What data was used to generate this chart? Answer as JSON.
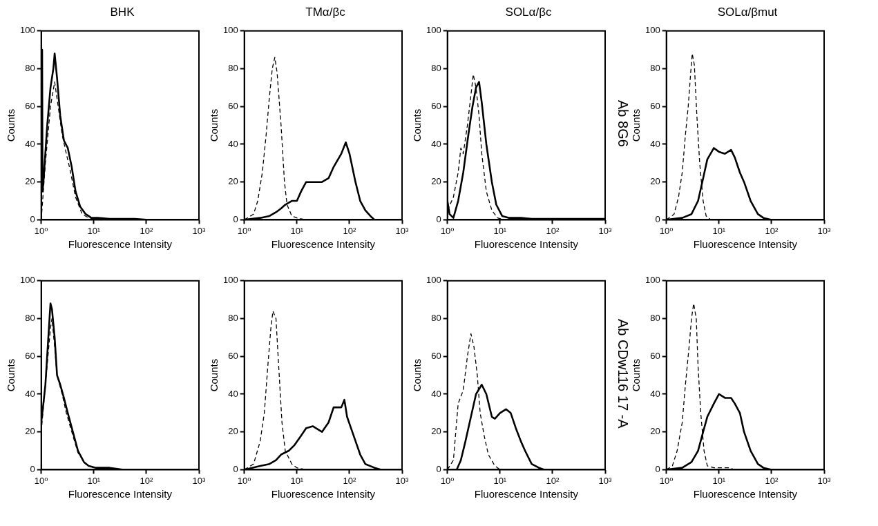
{
  "chart_data": [
    {
      "type": "line",
      "title": "BHK",
      "xlabel": "Fluorescence Intensity",
      "ylabel": "Counts",
      "log": "x",
      "xlim": [
        1,
        1000
      ],
      "ylim": [
        0,
        100
      ],
      "xticks": [
        {
          "value": 1,
          "label": "10⁰"
        },
        {
          "value": 10,
          "label": "10¹"
        },
        {
          "value": 100,
          "label": "10²"
        },
        {
          "value": 1000,
          "label": "10³"
        }
      ],
      "yticks": [
        0,
        20,
        40,
        60,
        80,
        100
      ],
      "series": [
        {
          "color": "#000000",
          "line_style": "solid",
          "x": [
            1,
            1.04,
            1.06,
            1.1,
            1.3,
            1.5,
            1.7,
            1.8,
            2,
            2.3,
            2.7,
            3.2,
            3.8,
            4.5,
            5.5,
            7,
            9,
            12,
            20,
            60,
            100,
            1000
          ],
          "values": [
            90,
            90,
            15,
            20,
            50,
            70,
            80,
            88,
            75,
            55,
            42,
            38,
            28,
            15,
            7,
            3,
            1,
            1,
            0.5,
            0.5,
            0,
            0
          ]
        },
        {
          "color": "#000000",
          "line_style": "dashed",
          "x": [
            1,
            1.2,
            1.5,
            1.8,
            2.1,
            2.5,
            3,
            3.5,
            4.5,
            6,
            8,
            15,
            100
          ],
          "values": [
            0,
            30,
            60,
            73,
            60,
            45,
            35,
            27,
            12,
            3,
            1,
            0.5,
            0
          ]
        }
      ]
    },
    {
      "type": "line",
      "title": "TMα/βc",
      "xlabel": "Fluorescence Intensity",
      "ylabel": "Counts",
      "log": "x",
      "xlim": [
        1,
        1000
      ],
      "ylim": [
        0,
        100
      ],
      "xticks": [
        {
          "value": 1,
          "label": "10⁰"
        },
        {
          "value": 10,
          "label": "10¹"
        },
        {
          "value": 100,
          "label": "10²"
        },
        {
          "value": 1000,
          "label": "10³"
        }
      ],
      "yticks": [
        0,
        20,
        40,
        60,
        80,
        100
      ],
      "series": [
        {
          "color": "#000000",
          "line_style": "solid",
          "x": [
            1,
            2,
            3,
            4,
            5,
            6,
            8,
            10,
            12,
            15,
            20,
            30,
            40,
            50,
            70,
            85,
            100,
            130,
            160,
            200,
            250,
            300,
            1000
          ],
          "values": [
            0,
            1,
            2,
            4,
            6,
            8,
            10,
            10,
            15,
            20,
            20,
            20,
            22,
            28,
            35,
            41,
            35,
            20,
            10,
            5,
            2,
            0,
            0
          ]
        },
        {
          "color": "#000000",
          "line_style": "dashed",
          "x": [
            1,
            1.5,
            1.8,
            2.2,
            2.6,
            3,
            3.4,
            3.8,
            4.2,
            5,
            5.8,
            6.5,
            8,
            10,
            15
          ],
          "values": [
            0,
            3,
            10,
            25,
            45,
            65,
            80,
            86,
            78,
            50,
            20,
            8,
            2,
            1,
            0
          ]
        }
      ]
    },
    {
      "type": "line",
      "title": "SOLα/βc",
      "xlabel": "Fluorescence Intensity",
      "ylabel": "Counts",
      "log": "x",
      "xlim": [
        1,
        1000
      ],
      "ylim": [
        0,
        100
      ],
      "annotations": [
        "Ab 8G6"
      ],
      "xticks": [
        {
          "value": 1,
          "label": "10⁰"
        },
        {
          "value": 10,
          "label": "10¹"
        },
        {
          "value": 100,
          "label": "10²"
        },
        {
          "value": 1000,
          "label": "10³"
        }
      ],
      "yticks": [
        0,
        20,
        40,
        60,
        80,
        100
      ],
      "series": [
        {
          "color": "#000000",
          "line_style": "solid",
          "x": [
            1,
            1.1,
            1.3,
            1.6,
            2,
            2.5,
            3,
            3.5,
            4,
            4.5,
            5.5,
            7,
            8.5,
            11,
            15,
            25,
            40,
            1000
          ],
          "values": [
            10,
            3,
            1,
            10,
            25,
            45,
            60,
            70,
            73,
            62,
            40,
            20,
            8,
            2,
            1,
            1,
            0.5,
            0.5
          ]
        },
        {
          "color": "#000000",
          "line_style": "dashed",
          "x": [
            1,
            1.3,
            1.6,
            1.8,
            2,
            2.4,
            2.8,
            3.1,
            3.5,
            4,
            4.5,
            5.5,
            7,
            9,
            12
          ],
          "values": [
            5,
            12,
            25,
            38,
            35,
            50,
            66,
            77,
            70,
            55,
            35,
            15,
            5,
            1,
            0
          ]
        }
      ]
    },
    {
      "type": "line",
      "title": "SOLα/βmut",
      "xlabel": "Fluorescence Intensity",
      "ylabel": "Counts",
      "log": "x",
      "xlim": [
        1,
        1000
      ],
      "ylim": [
        0,
        100
      ],
      "xticks": [
        {
          "value": 1,
          "label": "10⁰"
        },
        {
          "value": 10,
          "label": "10¹"
        },
        {
          "value": 100,
          "label": "10²"
        },
        {
          "value": 1000,
          "label": "10³"
        }
      ],
      "yticks": [
        0,
        20,
        40,
        60,
        80,
        100
      ],
      "series": [
        {
          "color": "#000000",
          "line_style": "solid",
          "x": [
            1,
            2,
            3,
            4,
            5,
            6,
            8,
            10,
            13,
            17,
            20,
            25,
            30,
            40,
            55,
            70,
            100,
            1000
          ],
          "values": [
            0,
            1,
            3,
            10,
            22,
            32,
            38,
            36,
            35,
            37,
            33,
            25,
            20,
            10,
            3,
            1,
            0,
            0
          ]
        },
        {
          "color": "#000000",
          "line_style": "dashed",
          "x": [
            1,
            1.4,
            1.7,
            2,
            2.3,
            2.6,
            2.9,
            3.1,
            3.4,
            3.8,
            4.3,
            5,
            5.7,
            7
          ],
          "values": [
            0,
            3,
            12,
            25,
            45,
            60,
            78,
            88,
            82,
            55,
            30,
            10,
            2,
            0
          ]
        }
      ]
    },
    {
      "type": "line",
      "xlabel": "Fluorescence Intensity",
      "ylabel": "Counts",
      "log": "x",
      "xlim": [
        1,
        1000
      ],
      "ylim": [
        0,
        100
      ],
      "xticks": [
        {
          "value": 1,
          "label": "10⁰"
        },
        {
          "value": 10,
          "label": "10¹"
        },
        {
          "value": 100,
          "label": "10²"
        },
        {
          "value": 1000,
          "label": "10³"
        }
      ],
      "yticks": [
        0,
        20,
        40,
        60,
        80,
        100
      ],
      "series": [
        {
          "color": "#000000",
          "line_style": "solid",
          "x": [
            1,
            1.1,
            1.2,
            1.4,
            1.5,
            1.6,
            1.8,
            2,
            2.3,
            2.7,
            3.2,
            4,
            5,
            6.5,
            8,
            11,
            20,
            35,
            1000
          ],
          "values": [
            25,
            35,
            45,
            75,
            88,
            85,
            70,
            50,
            45,
            38,
            30,
            20,
            10,
            4,
            2,
            1,
            1,
            0,
            0
          ]
        },
        {
          "color": "#000000",
          "line_style": "dashed",
          "x": [
            1,
            1.2,
            1.5,
            1.6,
            1.8,
            2,
            2.5,
            3,
            4,
            5,
            7,
            10,
            20
          ],
          "values": [
            20,
            45,
            75,
            80,
            65,
            50,
            40,
            30,
            18,
            9,
            3,
            1,
            0
          ]
        }
      ]
    },
    {
      "type": "line",
      "xlabel": "Fluorescence Intensity",
      "ylabel": "Counts",
      "log": "x",
      "xlim": [
        1,
        1000
      ],
      "ylim": [
        0,
        100
      ],
      "xticks": [
        {
          "value": 1,
          "label": "10⁰"
        },
        {
          "value": 10,
          "label": "10¹"
        },
        {
          "value": 100,
          "label": "10²"
        },
        {
          "value": 1000,
          "label": "10³"
        }
      ],
      "yticks": [
        0,
        20,
        40,
        60,
        80,
        100
      ],
      "series": [
        {
          "color": "#000000",
          "line_style": "solid",
          "x": [
            1,
            2,
            3,
            4,
            5,
            7,
            9,
            12,
            15,
            20,
            30,
            40,
            50,
            70,
            80,
            90,
            120,
            160,
            200,
            300,
            400,
            1000
          ],
          "values": [
            0,
            2,
            3,
            5,
            8,
            10,
            13,
            18,
            22,
            23,
            20,
            25,
            33,
            33,
            37,
            28,
            18,
            8,
            3,
            1,
            0,
            0
          ]
        },
        {
          "color": "#000000",
          "line_style": "dashed",
          "x": [
            1,
            1.5,
            2,
            2.4,
            2.8,
            3.2,
            3.5,
            4,
            4.5,
            5.2,
            6,
            8,
            10,
            15
          ],
          "values": [
            0,
            3,
            15,
            30,
            55,
            75,
            84,
            80,
            55,
            25,
            10,
            3,
            1,
            0
          ]
        }
      ]
    },
    {
      "type": "line",
      "xlabel": "Fluorescence Intensity",
      "ylabel": "Counts",
      "log": "x",
      "xlim": [
        1,
        1000
      ],
      "ylim": [
        0,
        100
      ],
      "annotations": [
        "Ab CDw116 17 -A"
      ],
      "xticks": [
        {
          "value": 1,
          "label": "10⁰"
        },
        {
          "value": 10,
          "label": "10¹"
        },
        {
          "value": 100,
          "label": "10²"
        },
        {
          "value": 1000,
          "label": "10³"
        }
      ],
      "yticks": [
        0,
        20,
        40,
        60,
        80,
        100
      ],
      "series": [
        {
          "color": "#000000",
          "line_style": "solid",
          "x": [
            1,
            1.5,
            1.8,
            2.2,
            2.8,
            3.5,
            4.5,
            5.5,
            7,
            8,
            10,
            13,
            16,
            20,
            25,
            30,
            40,
            55,
            70,
            1000
          ],
          "values": [
            0,
            0,
            5,
            15,
            28,
            40,
            45,
            40,
            28,
            27,
            30,
            32,
            30,
            22,
            15,
            10,
            3,
            1,
            0,
            0
          ]
        },
        {
          "color": "#000000",
          "line_style": "dashed",
          "x": [
            1,
            1.3,
            1.6,
            2,
            2.4,
            2.8,
            3.2,
            3.7,
            4.2,
            5,
            6,
            8,
            10
          ],
          "values": [
            0,
            5,
            35,
            42,
            60,
            72,
            65,
            50,
            30,
            18,
            8,
            2,
            0
          ]
        }
      ]
    },
    {
      "type": "line",
      "xlabel": "Fluorescence Intensity",
      "ylabel": "Counts",
      "log": "x",
      "xlim": [
        1,
        1000
      ],
      "ylim": [
        0,
        100
      ],
      "xticks": [
        {
          "value": 1,
          "label": "10⁰"
        },
        {
          "value": 10,
          "label": "10¹"
        },
        {
          "value": 100,
          "label": "10²"
        },
        {
          "value": 1000,
          "label": "10³"
        }
      ],
      "yticks": [
        0,
        20,
        40,
        60,
        80,
        100
      ],
      "series": [
        {
          "color": "#000000",
          "line_style": "solid",
          "x": [
            1,
            2,
            3,
            4,
            5,
            6,
            8,
            10,
            13,
            17,
            20,
            25,
            30,
            40,
            55,
            70,
            100,
            1000
          ],
          "values": [
            0,
            1,
            4,
            10,
            20,
            28,
            35,
            40,
            38,
            38,
            35,
            30,
            20,
            10,
            3,
            1,
            0,
            0
          ]
        },
        {
          "color": "#000000",
          "line_style": "dashed",
          "x": [
            1,
            1.3,
            1.6,
            2,
            2.3,
            2.7,
            3,
            3.3,
            3.7,
            4,
            4.5,
            5.2,
            6,
            8,
            15,
            20
          ],
          "values": [
            0,
            2,
            10,
            25,
            45,
            65,
            80,
            88,
            80,
            55,
            30,
            10,
            2,
            1,
            1,
            0
          ]
        }
      ]
    }
  ]
}
